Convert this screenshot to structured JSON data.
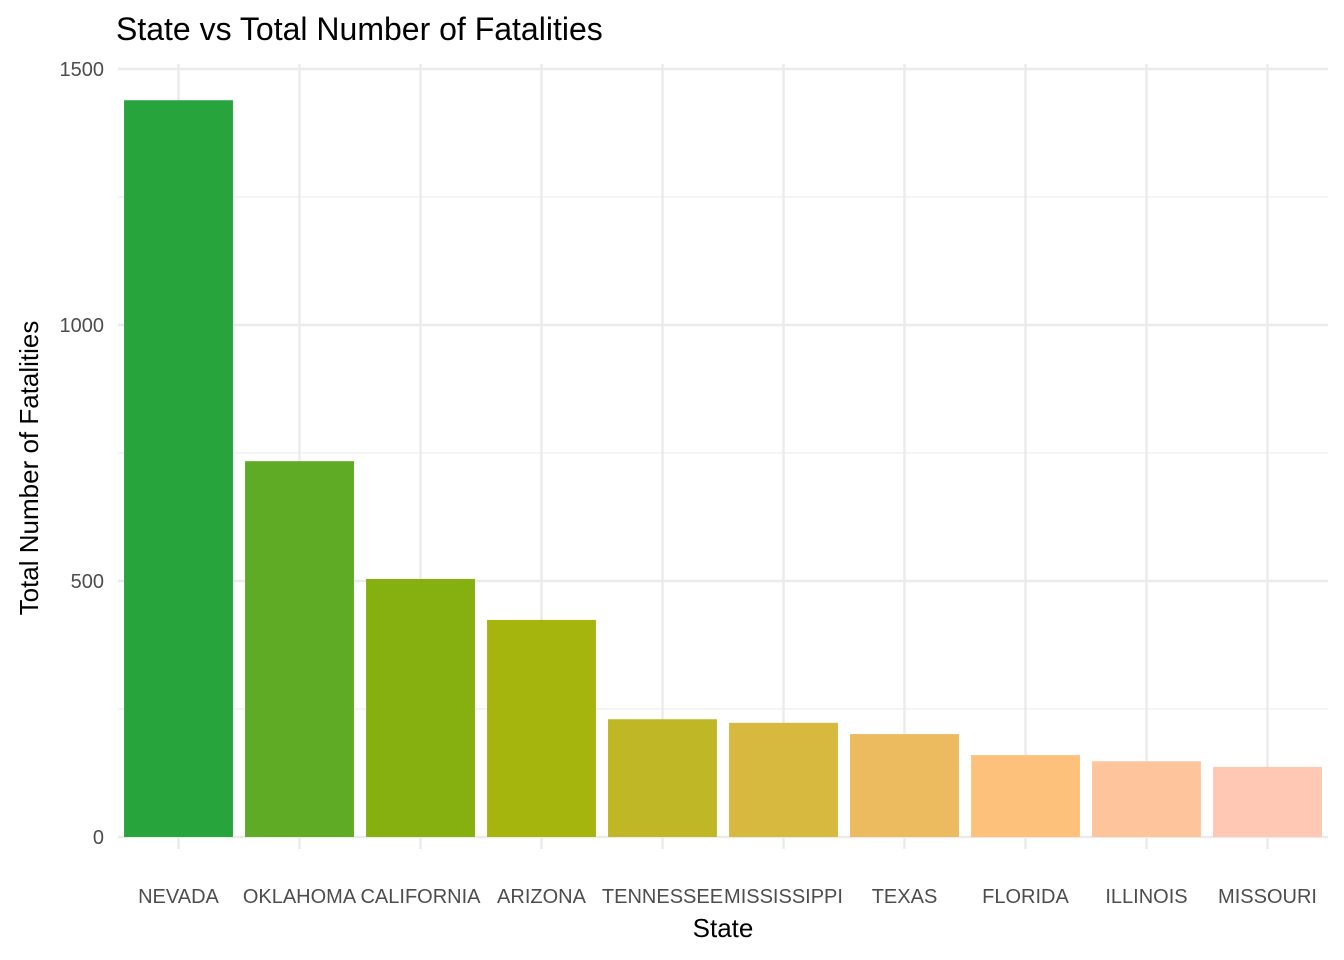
{
  "chart_data": {
    "type": "bar",
    "title": "State vs Total Number of Fatalities",
    "xlabel": "State",
    "ylabel": "Total Number of Fatalities",
    "ylim": [
      0,
      1500
    ],
    "yticks": [
      0,
      500,
      1000,
      1500
    ],
    "ytick_labels": [
      "0",
      "500",
      "1000",
      "1500"
    ],
    "grid": true,
    "categories": [
      "NEVADA",
      "OKLAHOMA",
      "CALIFORNIA",
      "ARIZONA",
      "TENNESSEE",
      "MISSISSIPPI",
      "TEXAS",
      "FLORIDA",
      "ILLINOIS",
      "MISSOURI"
    ],
    "values": [
      1439,
      734,
      504,
      424,
      230,
      223,
      201,
      160,
      148,
      137
    ],
    "colors": [
      "#28a43c",
      "#5fab26",
      "#85b010",
      "#a5b50e",
      "#c0b726",
      "#d7b940",
      "#ecbb60",
      "#fec17c",
      "#fec59c",
      "#fec8b4"
    ]
  }
}
